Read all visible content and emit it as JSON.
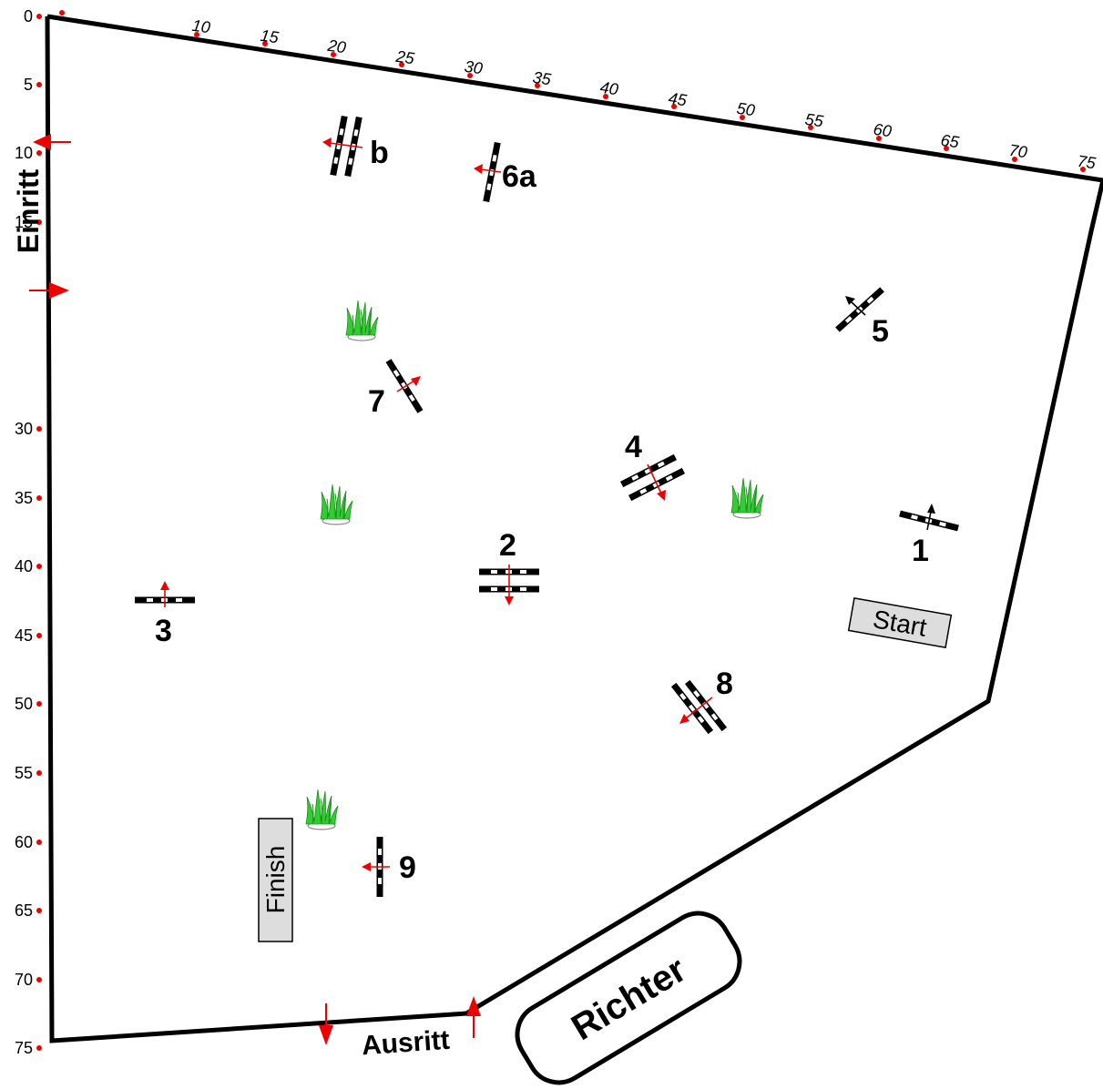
{
  "axes": {
    "left_ticks": [
      "0",
      "5",
      "10",
      "15",
      "30",
      "35",
      "40",
      "45",
      "50",
      "55",
      "60",
      "65",
      "70",
      "75"
    ],
    "top_ticks": [
      "10",
      "15",
      "20",
      "25",
      "30",
      "35",
      "40",
      "45",
      "50",
      "55",
      "60",
      "65",
      "70",
      "75"
    ]
  },
  "labels": {
    "entry": "Einritt",
    "exit": "Ausritt",
    "judge": "Richter",
    "start": "Start",
    "finish": "Finish"
  },
  "obstacles": [
    "1",
    "2",
    "3",
    "4",
    "5",
    "6a",
    "7",
    "8",
    "9",
    "b"
  ],
  "colors": {
    "marker_red": "#ee0000",
    "fence_black": "#000000",
    "box_fill": "#dddddd",
    "plant_green": "#33cc33"
  },
  "icons": [
    "red-arrow-icon",
    "plant-icon",
    "jump-pole-icon"
  ]
}
